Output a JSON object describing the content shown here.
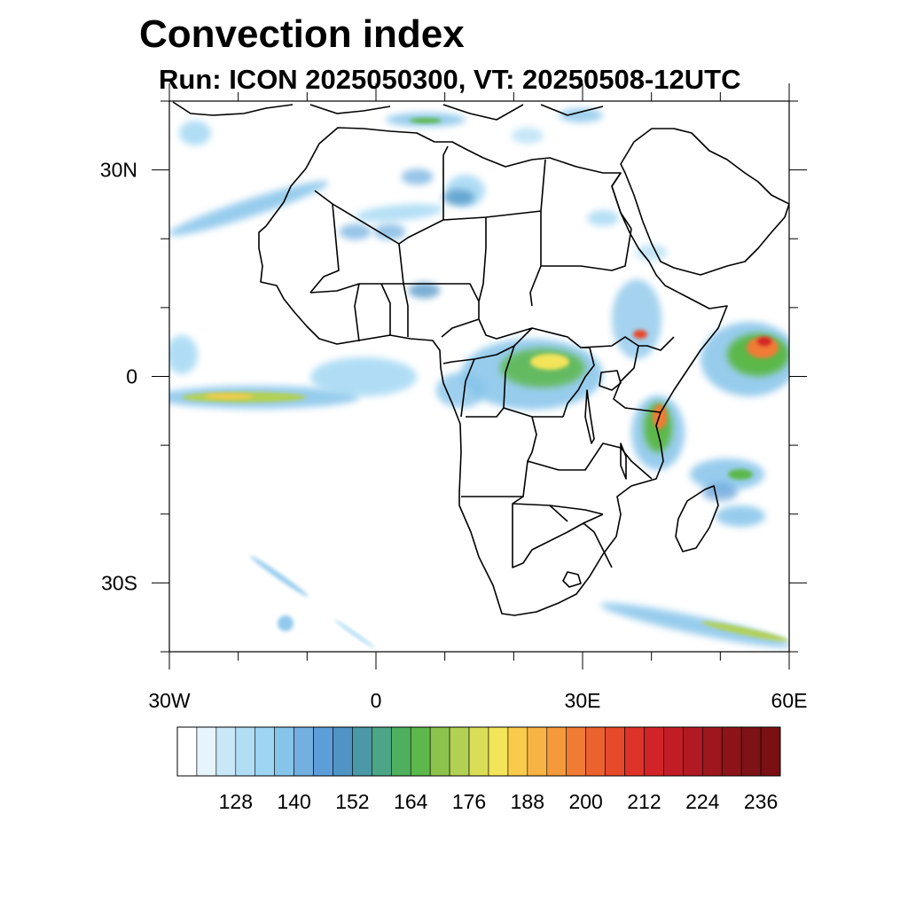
{
  "title": "Convection index",
  "subtitle": "Run: ICON 2025050300,  VT: 20250508-12UTC",
  "map": {
    "lon_range": [
      -30,
      60
    ],
    "lat_range": [
      -40,
      40
    ],
    "lat_labels": [
      {
        "lat": 30,
        "text": "30N"
      },
      {
        "lat": 0,
        "text": "0"
      },
      {
        "lat": -30,
        "text": "30S"
      }
    ],
    "lon_labels": [
      {
        "lon": -30,
        "text": "30W"
      },
      {
        "lon": 0,
        "text": "0"
      },
      {
        "lon": 30,
        "text": "30E"
      },
      {
        "lon": 60,
        "text": "60E"
      }
    ],
    "colorbar": {
      "levels": [
        116,
        120,
        124,
        128,
        132,
        136,
        140,
        144,
        148,
        152,
        156,
        160,
        164,
        168,
        172,
        176,
        180,
        184,
        188,
        192,
        196,
        200,
        204,
        208,
        212,
        216,
        220,
        224,
        228,
        232,
        236,
        240
      ],
      "label_values": [
        "128",
        "140",
        "152",
        "164",
        "176",
        "188",
        "200",
        "212",
        "224",
        "236"
      ],
      "colors": [
        "#ffffff",
        "#e6f4fb",
        "#c8e7f7",
        "#b1def5",
        "#9dd5f3",
        "#86c4ea",
        "#73b0e0",
        "#5e9ed8",
        "#5094c6",
        "#4a98a8",
        "#4ca586",
        "#4eb05f",
        "#5cb84a",
        "#8cc34d",
        "#b2d053",
        "#dade57",
        "#f3e45a",
        "#f8cb4d",
        "#f7b444",
        "#f59a3c",
        "#f07c34",
        "#ec622e",
        "#e64a2b",
        "#dd3329",
        "#d22428",
        "#c21d26",
        "#b11a23",
        "#9e171f",
        "#8c1419",
        "#7e1216",
        "#7a1014"
      ]
    },
    "cells": [
      {
        "lon": 7,
        "lat": 12.5,
        "value": 150
      },
      {
        "lon": -3,
        "lat": 21,
        "value": 140
      },
      {
        "lon": 2,
        "lat": 21,
        "value": 140
      },
      {
        "lon": 6,
        "lat": 29,
        "value": 140
      },
      {
        "lon": 12,
        "lat": 26,
        "value": 150
      },
      {
        "lon": 40,
        "lat": 18,
        "value": 130
      },
      {
        "lon": 22,
        "lat": 35,
        "value": 130
      },
      {
        "lon": 33,
        "lat": 23,
        "value": 135
      }
    ]
  }
}
